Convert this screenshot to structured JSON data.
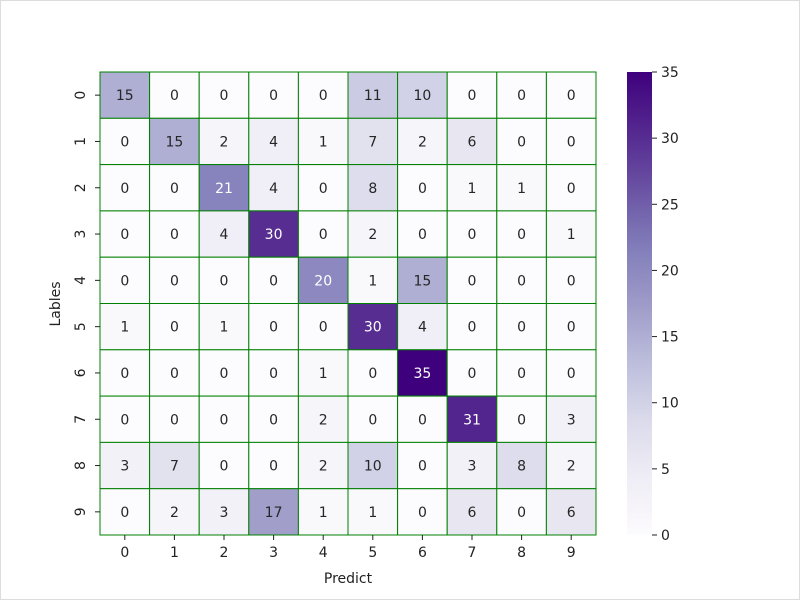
{
  "chart_data": {
    "type": "heatmap",
    "title": "",
    "xlabel": "Predict",
    "ylabel": "Lables",
    "x_categories": [
      "0",
      "1",
      "2",
      "3",
      "4",
      "5",
      "6",
      "7",
      "8",
      "9"
    ],
    "y_categories": [
      "0",
      "1",
      "2",
      "3",
      "4",
      "5",
      "6",
      "7",
      "8",
      "9"
    ],
    "values": [
      [
        15,
        0,
        0,
        0,
        0,
        11,
        10,
        0,
        0,
        0
      ],
      [
        0,
        15,
        2,
        4,
        1,
        7,
        2,
        6,
        0,
        0
      ],
      [
        0,
        0,
        21,
        4,
        0,
        8,
        0,
        1,
        1,
        0
      ],
      [
        0,
        0,
        4,
        30,
        0,
        2,
        0,
        0,
        0,
        1
      ],
      [
        0,
        0,
        0,
        0,
        20,
        1,
        15,
        0,
        0,
        0
      ],
      [
        1,
        0,
        1,
        0,
        0,
        30,
        4,
        0,
        0,
        0
      ],
      [
        0,
        0,
        0,
        0,
        1,
        0,
        35,
        0,
        0,
        0
      ],
      [
        0,
        0,
        0,
        0,
        2,
        0,
        0,
        31,
        0,
        3
      ],
      [
        3,
        7,
        0,
        0,
        2,
        10,
        0,
        3,
        8,
        2
      ],
      [
        0,
        2,
        3,
        17,
        1,
        1,
        0,
        6,
        0,
        6
      ]
    ],
    "colormap": "Purples",
    "color_min": "#fcfbfd",
    "color_max": "#3f007d",
    "cell_border_color": "#008000",
    "annot_dark_color": "#262626",
    "annot_light_color": "#ffffff",
    "vmin": 0,
    "vmax": 35,
    "colorbar_ticks": [
      "0",
      "5",
      "10",
      "15",
      "20",
      "25",
      "30",
      "35"
    ],
    "legend": "colorbar-right",
    "grid": false
  }
}
